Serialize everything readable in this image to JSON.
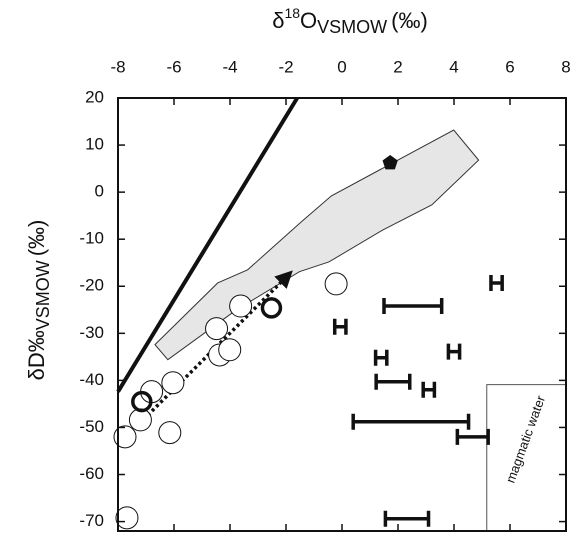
{
  "chart_data": {
    "type": "scatter",
    "x_label": {
      "symbol": "δ",
      "sup": "18",
      "main": "O",
      "sub": "VSMOW",
      "unit": "(‰)"
    },
    "y_label": {
      "main": "δD‰",
      "sub": "VSMOW",
      "unit": "(‰)"
    },
    "xlim": [
      -8,
      8
    ],
    "ylim": [
      -72,
      20
    ],
    "xticks": [
      -8,
      -6,
      -4,
      -2,
      0,
      2,
      4,
      6,
      8
    ],
    "yticks": [
      20,
      10,
      0,
      -10,
      -20,
      -30,
      -40,
      -50,
      -60,
      -70
    ],
    "series": [
      {
        "marker": "polygon",
        "color": "#e6e6e6",
        "x": [
          -6.68,
          -4.44,
          -3.37,
          -1.45,
          -0.38,
          3.99,
          4.88,
          3.21,
          1.47,
          -0.46,
          -1.52,
          -3.77,
          -6.22
        ],
        "values": [
          -32.4,
          -19.3,
          -16.5,
          -6.3,
          -0.8,
          13.2,
          6.8,
          -2.7,
          -8.0,
          -14.8,
          -16.9,
          -25.0,
          -35.6
        ]
      },
      {
        "marker": "line",
        "color": "#111111",
        "x": [
          -8,
          -1.6
        ],
        "values": [
          -42.4,
          20
        ]
      },
      {
        "marker": "dotted-arrow",
        "color": "#111111",
        "x": [
          -8,
          -1.8
        ],
        "values": [
          -53.7,
          -16.9
        ]
      },
      {
        "marker": "circle",
        "color": "#111111",
        "x": [
          -7.68,
          -7.75,
          -7.2,
          -6.8,
          -6.04,
          -6.15,
          -4.48,
          -4.37,
          -4.01,
          -3.62,
          -0.21
        ],
        "values": [
          -69.2,
          -52.0,
          -48.4,
          -42.4,
          -40.5,
          -51.1,
          -29.0,
          -34.6,
          -33.5,
          -24.2,
          -19.5
        ]
      },
      {
        "marker": "thick-circle",
        "color": "#111111",
        "x": [
          -7.15,
          -2.52
        ],
        "values": [
          -44.5,
          -24.6
        ]
      },
      {
        "marker": "pentagon",
        "color": "#111111",
        "x": [
          1.72
        ],
        "values": [
          6.2
        ]
      },
      {
        "marker": "errorbar",
        "color": "#111111",
        "x": [
          -0.06,
          1.4,
          3.1,
          4.0,
          5.52,
          2.53,
          1.82,
          2.46,
          4.67,
          2.32
        ],
        "xerr": [
          0.2,
          0.2,
          0.2,
          0.2,
          0.2,
          1.03,
          0.6,
          2.06,
          0.55,
          0.77
        ],
        "values": [
          -28.6,
          -35.2,
          -42.0,
          -33.9,
          -19.3,
          -24.2,
          -40.3,
          -48.8,
          -52.0,
          -69.4
        ]
      }
    ],
    "region": {
      "label": "magmatic water",
      "x": [
        5.17,
        8
      ],
      "y": [
        -72,
        -40.9
      ]
    }
  }
}
